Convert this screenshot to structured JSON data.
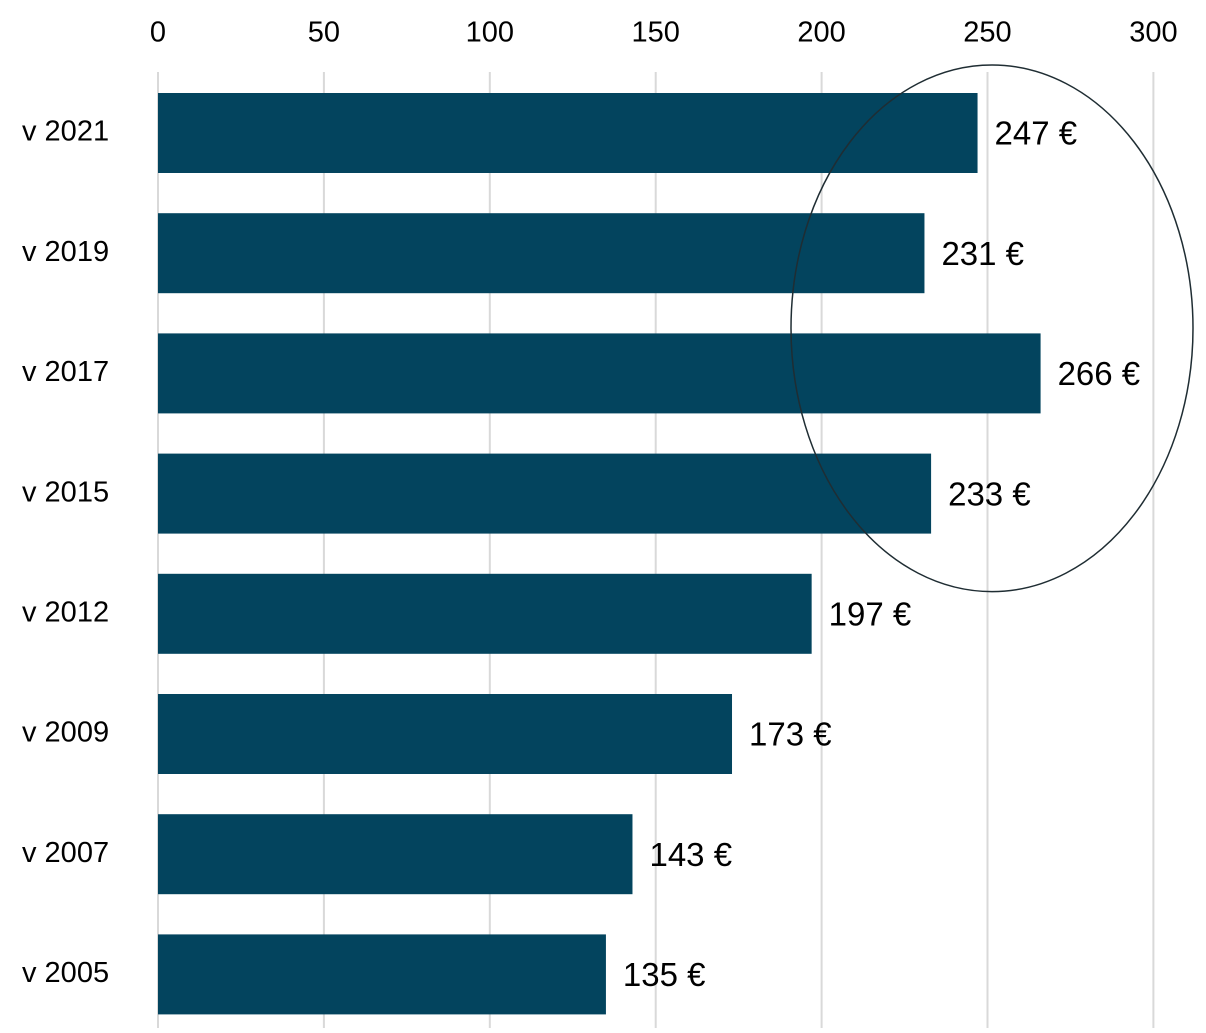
{
  "chart_data": {
    "type": "bar",
    "orientation": "horizontal",
    "categories": [
      "v 2021",
      "v 2019",
      "v 2017",
      "v 2015",
      "v 2012",
      "v 2009",
      "v 2007",
      "v 2005"
    ],
    "values": [
      247,
      231,
      266,
      233,
      197,
      173,
      143,
      135
    ],
    "value_labels": [
      "247 €",
      "231 €",
      "266 €",
      "233 €",
      "197 €",
      "173 €",
      "143 €",
      "135 €"
    ],
    "xticks": [
      "0",
      "50",
      "100",
      "150",
      "200",
      "250",
      "300"
    ],
    "xlim": [
      0,
      300
    ],
    "x_axis_position": "top",
    "grid": true,
    "bar_color": "#03445e",
    "highlight_ellipse": {
      "covers_categories": [
        "v 2021",
        "v 2019",
        "v 2017",
        "v 2015"
      ],
      "stroke_color": "#1f2d33"
    },
    "title": "",
    "xlabel": "",
    "ylabel": ""
  }
}
